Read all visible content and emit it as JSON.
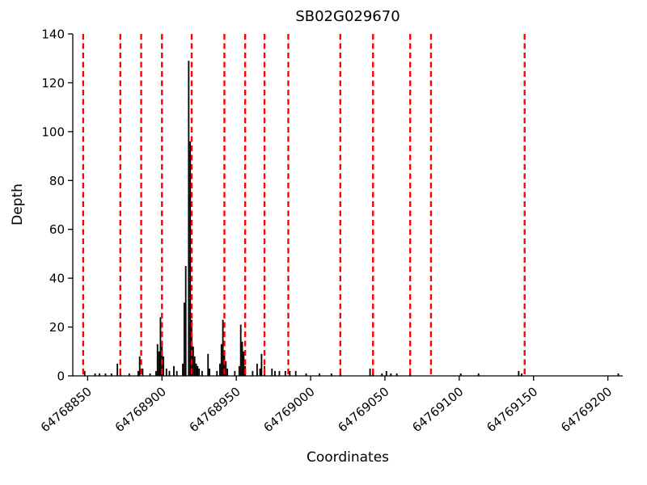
{
  "chart_data": {
    "type": "bar",
    "title": "SB02G029670",
    "xlabel": "Coordinates",
    "ylabel": "Depth",
    "xlim": [
      64768840,
      64769210
    ],
    "ylim": [
      0,
      140
    ],
    "x_ticks": [
      64768850,
      64768900,
      64768950,
      64769000,
      64769050,
      64769100,
      64769150,
      64769200
    ],
    "y_ticks": [
      0,
      20,
      40,
      60,
      80,
      100,
      120,
      140
    ],
    "bar_color": "#000000",
    "vline_color": "#ff0000",
    "vline_style": "dashed",
    "vlines": [
      64768847,
      64768872,
      64768886,
      64768900,
      64768920,
      64768942,
      64768956,
      64768969,
      64768985,
      64769020,
      64769042,
      64769067,
      64769081,
      64769144
    ],
    "bars": [
      [
        64768848,
        2
      ],
      [
        64768855,
        1
      ],
      [
        64768858,
        1
      ],
      [
        64768862,
        1
      ],
      [
        64768866,
        1
      ],
      [
        64768870,
        5
      ],
      [
        64768872,
        3
      ],
      [
        64768878,
        1
      ],
      [
        64768884,
        2
      ],
      [
        64768885,
        8
      ],
      [
        64768887,
        3
      ],
      [
        64768892,
        1
      ],
      [
        64768896,
        2
      ],
      [
        64768897,
        13
      ],
      [
        64768898,
        10
      ],
      [
        64768899,
        24
      ],
      [
        64768900,
        12
      ],
      [
        64768901,
        8
      ],
      [
        64768903,
        3
      ],
      [
        64768905,
        2
      ],
      [
        64768908,
        4
      ],
      [
        64768910,
        2
      ],
      [
        64768914,
        5
      ],
      [
        64768915,
        30
      ],
      [
        64768916,
        45
      ],
      [
        64768918,
        129
      ],
      [
        64768919,
        96
      ],
      [
        64768920,
        23
      ],
      [
        64768921,
        12
      ],
      [
        64768922,
        8
      ],
      [
        64768923,
        5
      ],
      [
        64768924,
        4
      ],
      [
        64768925,
        3
      ],
      [
        64768927,
        2
      ],
      [
        64768931,
        9
      ],
      [
        64768932,
        3
      ],
      [
        64768937,
        2
      ],
      [
        64768939,
        5
      ],
      [
        64768940,
        13
      ],
      [
        64768941,
        23
      ],
      [
        64768942,
        10
      ],
      [
        64768943,
        6
      ],
      [
        64768944,
        3
      ],
      [
        64768949,
        2
      ],
      [
        64768952,
        4
      ],
      [
        64768953,
        21
      ],
      [
        64768954,
        14
      ],
      [
        64768955,
        10
      ],
      [
        64768956,
        4
      ],
      [
        64768961,
        2
      ],
      [
        64768964,
        5
      ],
      [
        64768966,
        3
      ],
      [
        64768967,
        9
      ],
      [
        64768969,
        4
      ],
      [
        64768974,
        3
      ],
      [
        64768976,
        2
      ],
      [
        64768979,
        2
      ],
      [
        64768983,
        2
      ],
      [
        64768986,
        2
      ],
      [
        64768990,
        2
      ],
      [
        64768997,
        1
      ],
      [
        64769006,
        1
      ],
      [
        64769014,
        1
      ],
      [
        64769020,
        1
      ],
      [
        64769040,
        3
      ],
      [
        64769042,
        2
      ],
      [
        64769048,
        1
      ],
      [
        64769051,
        2
      ],
      [
        64769054,
        1
      ],
      [
        64769058,
        1
      ],
      [
        64769067,
        1
      ],
      [
        64769101,
        1
      ],
      [
        64769113,
        1
      ],
      [
        64769140,
        2
      ],
      [
        64769142,
        1
      ],
      [
        64769207,
        1
      ]
    ],
    "legend": null,
    "grid": false
  }
}
